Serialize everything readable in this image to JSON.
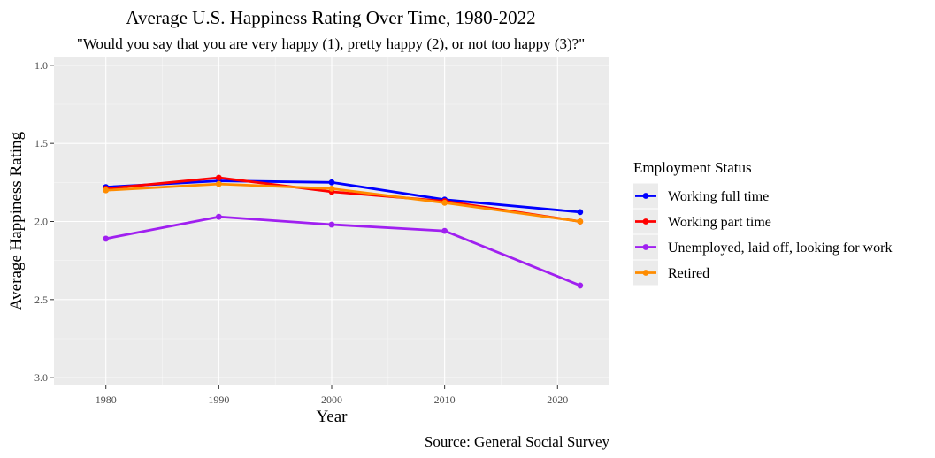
{
  "chart_data": {
    "type": "line",
    "title": "Average U.S. Happiness Rating Over Time, 1980-2022",
    "subtitle": "\"Would you say that you are very happy (1), pretty happy (2), or not too happy (3)?\"",
    "xlabel": "Year",
    "ylabel": "Average Happiness Rating",
    "caption": "Source: General Social Survey",
    "x": [
      1980,
      1990,
      2000,
      2010,
      2022
    ],
    "xlim": [
      1975.4,
      2024.6
    ],
    "ylim": [
      3.05,
      0.95
    ],
    "y_reversed": true,
    "x_ticks": [
      1980,
      1990,
      2000,
      2010,
      2020
    ],
    "y_ticks": [
      1.0,
      1.5,
      2.0,
      2.5,
      3.0
    ],
    "y_tick_labels": [
      "1.0",
      "1.5",
      "2.0",
      "2.5",
      "3.0"
    ],
    "grid": true,
    "legend": {
      "title": "Employment Status",
      "position": "right"
    },
    "series": [
      {
        "name": "Working full time",
        "color": "#0000ff",
        "values": [
          1.78,
          1.74,
          1.75,
          1.86,
          1.94
        ]
      },
      {
        "name": "Working part time",
        "color": "#ff0000",
        "values": [
          1.79,
          1.72,
          1.81,
          1.87,
          2.0
        ]
      },
      {
        "name": "Unemployed, laid off, looking for work",
        "color": "#a020f0",
        "values": [
          2.11,
          1.97,
          2.02,
          2.06,
          2.41
        ]
      },
      {
        "name": "Retired",
        "color": "#ff8c00",
        "values": [
          1.8,
          1.76,
          1.79,
          1.88,
          2.0
        ]
      }
    ]
  }
}
